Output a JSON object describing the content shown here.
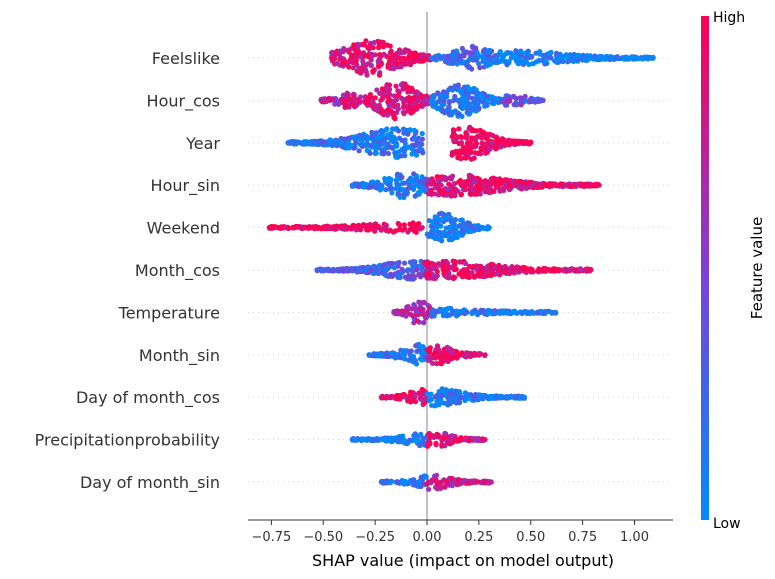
{
  "chart_data": {
    "type": "scatter",
    "subtype": "shap-beeswarm",
    "xlabel": "SHAP value (impact on model output)",
    "xlim": [
      -0.85,
      1.18
    ],
    "xticks": [
      -0.75,
      -0.5,
      -0.25,
      0.0,
      0.25,
      0.5,
      0.75,
      1.0
    ],
    "xtick_labels": [
      "−0.75",
      "−0.50",
      "−0.25",
      "0.00",
      "0.25",
      "0.50",
      "0.75",
      "1.00"
    ],
    "zero_line": 0.0,
    "grid": false,
    "colorbar": {
      "title": "Feature value",
      "high_label": "High",
      "low_label": "Low",
      "high_color": "#ff0052",
      "mid_color": "#7f3fd6",
      "low_color": "#008bfb"
    },
    "features": [
      {
        "name": "Feelslike",
        "min": -0.46,
        "max": 1.09,
        "segments": [
          {
            "from": -0.46,
            "to": 0.02,
            "hi": -0.26,
            "peak": 0.95,
            "color": 0.9
          },
          {
            "from": 0.02,
            "to": 0.35,
            "hi": 0.22,
            "peak": 0.6,
            "color": 0.2
          },
          {
            "from": 0.35,
            "to": 1.09,
            "hi": 0.45,
            "peak": 0.35,
            "color": 0.05
          }
        ]
      },
      {
        "name": "Hour_cos",
        "min": -0.51,
        "max": 0.56,
        "segments": [
          {
            "from": -0.51,
            "to": -0.3,
            "hi": -0.38,
            "peak": 0.35,
            "color": 0.75
          },
          {
            "from": -0.3,
            "to": 0.02,
            "hi": -0.15,
            "peak": 1.0,
            "color": 0.88
          },
          {
            "from": 0.02,
            "to": 0.36,
            "hi": 0.15,
            "peak": 0.9,
            "color": 0.12
          },
          {
            "from": 0.36,
            "to": 0.56,
            "hi": 0.42,
            "peak": 0.3,
            "color": 0.35
          }
        ]
      },
      {
        "name": "Year",
        "min": -0.67,
        "max": 0.5,
        "segments": [
          {
            "from": -0.67,
            "to": -0.02,
            "hi": -0.14,
            "peak": 0.75,
            "color": 0.12
          },
          {
            "from": 0.12,
            "to": 0.5,
            "hi": 0.19,
            "peak": 0.9,
            "color": 0.95
          }
        ]
      },
      {
        "name": "Hour_sin",
        "min": -0.36,
        "max": 0.83,
        "segments": [
          {
            "from": -0.36,
            "to": -0.0,
            "hi": -0.1,
            "peak": 0.65,
            "color": 0.12
          },
          {
            "from": -0.0,
            "to": 0.83,
            "hi": 0.12,
            "peak": 0.55,
            "color": 0.9
          }
        ]
      },
      {
        "name": "Weekend",
        "min": -0.76,
        "max": 0.3,
        "segments": [
          {
            "from": -0.76,
            "to": -0.02,
            "hi": -0.08,
            "peak": 0.22,
            "color": 0.97
          },
          {
            "from": 0.0,
            "to": 0.3,
            "hi": 0.08,
            "peak": 0.75,
            "color": 0.05
          }
        ]
      },
      {
        "name": "Month_cos",
        "min": -0.53,
        "max": 0.79,
        "segments": [
          {
            "from": -0.53,
            "to": -0.01,
            "hi": -0.07,
            "peak": 0.45,
            "color": 0.3
          },
          {
            "from": -0.01,
            "to": 0.79,
            "hi": 0.1,
            "peak": 0.45,
            "color": 0.92
          }
        ]
      },
      {
        "name": "Temperature",
        "min": -0.16,
        "max": 0.62,
        "segments": [
          {
            "from": -0.16,
            "to": 0.02,
            "hi": -0.04,
            "peak": 0.6,
            "color": 0.65
          },
          {
            "from": 0.02,
            "to": 0.62,
            "hi": 0.06,
            "peak": 0.18,
            "color": 0.08
          }
        ]
      },
      {
        "name": "Month_sin",
        "min": -0.28,
        "max": 0.28,
        "segments": [
          {
            "from": -0.28,
            "to": 0.0,
            "hi": -0.03,
            "peak": 0.55,
            "color": 0.12
          },
          {
            "from": 0.0,
            "to": 0.28,
            "hi": 0.05,
            "peak": 0.45,
            "color": 0.9
          }
        ]
      },
      {
        "name": "Day of month_cos",
        "min": -0.22,
        "max": 0.47,
        "segments": [
          {
            "from": -0.22,
            "to": 0.0,
            "hi": -0.02,
            "peak": 0.4,
            "color": 0.88
          },
          {
            "from": 0.0,
            "to": 0.47,
            "hi": 0.03,
            "peak": 0.45,
            "color": 0.1
          }
        ]
      },
      {
        "name": "Precipitationprobability",
        "min": -0.36,
        "max": 0.28,
        "segments": [
          {
            "from": -0.36,
            "to": 0.0,
            "hi": -0.01,
            "peak": 0.3,
            "color": 0.1
          },
          {
            "from": 0.0,
            "to": 0.28,
            "hi": 0.03,
            "peak": 0.4,
            "color": 0.85
          }
        ]
      },
      {
        "name": "Day of month_sin",
        "min": -0.22,
        "max": 0.31,
        "segments": [
          {
            "from": -0.22,
            "to": 0.0,
            "hi": -0.01,
            "peak": 0.3,
            "color": 0.15
          },
          {
            "from": 0.0,
            "to": 0.31,
            "hi": 0.02,
            "peak": 0.35,
            "color": 0.8
          }
        ]
      }
    ]
  }
}
